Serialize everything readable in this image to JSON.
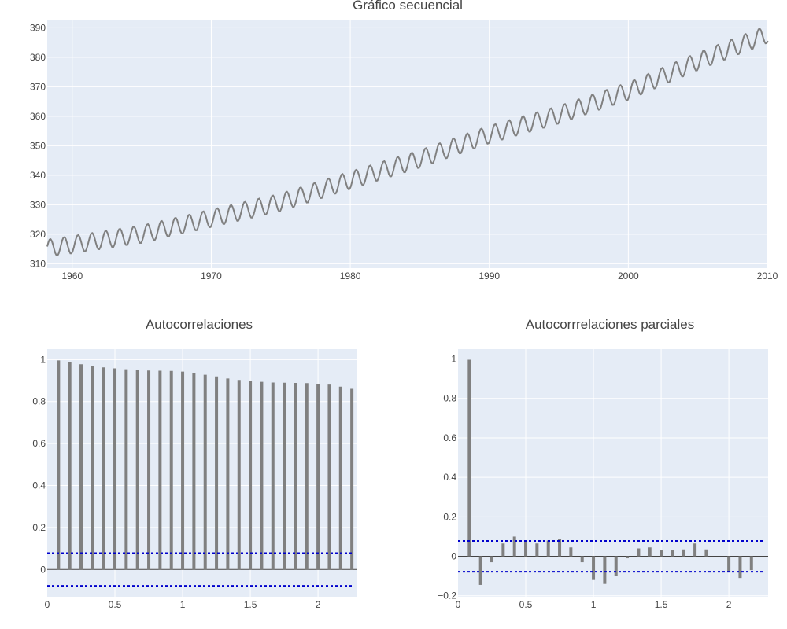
{
  "chart_data": [
    {
      "type": "line",
      "title": "Gráfico secuencial",
      "xlim": [
        1958.2,
        2010
      ],
      "ylim": [
        308.5,
        392.5
      ],
      "xticks": [
        1960,
        1970,
        1980,
        1990,
        2000,
        2010
      ],
      "yticks": [
        310,
        320,
        330,
        340,
        350,
        360,
        370,
        380,
        390
      ],
      "grid": true,
      "series": [
        {
          "color": "#808080",
          "model": "seasonal",
          "start_year": 1958.2,
          "end_year": 2010,
          "samples_per_year": 12,
          "trend_points": [
            [
              1958.2,
              315.2
            ],
            [
              1965,
              320.0
            ],
            [
              1970,
              325.4
            ],
            [
              1975,
              330.8
            ],
            [
              1980,
              338.3
            ],
            [
              1985,
              345.5
            ],
            [
              1990,
              353.8
            ],
            [
              1995,
              360.5
            ],
            [
              2000,
              368.5
            ],
            [
              2005,
              378.6
            ],
            [
              2010,
              387.8
            ]
          ],
          "seasonal_amplitude": 3.0,
          "seasonal_peak_month": 5
        }
      ]
    },
    {
      "type": "bar",
      "title": "Autocorrelaciones",
      "xlim": [
        0,
        2.29
      ],
      "ylim": [
        -0.13,
        1.05
      ],
      "xticks": [
        0,
        0.5,
        1,
        1.5,
        2
      ],
      "xtick_labels": [
        "0",
        "0.5",
        "1",
        "1.5",
        "2"
      ],
      "yticks": [
        0,
        0.2,
        0.4,
        0.6,
        0.8,
        1
      ],
      "ytick_labels": [
        "0",
        "0.2",
        "0.4",
        "0.6",
        "0.8",
        "1"
      ],
      "grid": true,
      "confidence_band": 0.078,
      "x": [
        0.0833,
        0.1667,
        0.25,
        0.3333,
        0.4167,
        0.5,
        0.5833,
        0.6667,
        0.75,
        0.8333,
        0.9167,
        1.0,
        1.0833,
        1.1667,
        1.25,
        1.3333,
        1.4167,
        1.5,
        1.5833,
        1.6667,
        1.75,
        1.8333,
        1.9167,
        2.0,
        2.0833,
        2.1667,
        2.25
      ],
      "values": [
        0.996,
        0.987,
        0.978,
        0.97,
        0.963,
        0.958,
        0.954,
        0.951,
        0.948,
        0.947,
        0.946,
        0.943,
        0.937,
        0.928,
        0.92,
        0.91,
        0.903,
        0.898,
        0.894,
        0.891,
        0.89,
        0.889,
        0.888,
        0.885,
        0.881,
        0.871,
        0.861
      ],
      "color": "#808080"
    },
    {
      "type": "bar",
      "title": "Autocorrrelaciones parciales",
      "xlim": [
        0,
        2.29
      ],
      "ylim": [
        -0.205,
        1.05
      ],
      "xticks": [
        0,
        0.5,
        1,
        1.5,
        2
      ],
      "xtick_labels": [
        "0",
        "0.5",
        "1",
        "1.5",
        "2"
      ],
      "yticks": [
        -0.2,
        0,
        0.2,
        0.4,
        0.6,
        0.8,
        1
      ],
      "ytick_labels": [
        "−0.2",
        "0",
        "0.2",
        "0.4",
        "0.6",
        "0.8",
        "1"
      ],
      "grid": true,
      "confidence_band": 0.078,
      "x": [
        0.0833,
        0.1667,
        0.25,
        0.3333,
        0.4167,
        0.5,
        0.5833,
        0.6667,
        0.75,
        0.8333,
        0.9167,
        1.0,
        1.0833,
        1.1667,
        1.25,
        1.3333,
        1.4167,
        1.5,
        1.5833,
        1.6667,
        1.75,
        1.8333,
        1.9167,
        2.0,
        2.0833,
        2.1667,
        2.25
      ],
      "values": [
        0.996,
        -0.145,
        -0.03,
        0.065,
        0.1,
        0.08,
        0.065,
        0.08,
        0.088,
        0.045,
        -0.03,
        -0.12,
        -0.14,
        -0.1,
        -0.01,
        0.04,
        0.045,
        0.03,
        0.03,
        0.035,
        0.065,
        0.035,
        0.0,
        -0.08,
        -0.11,
        -0.07,
        0.0
      ],
      "color": "#808080"
    }
  ]
}
